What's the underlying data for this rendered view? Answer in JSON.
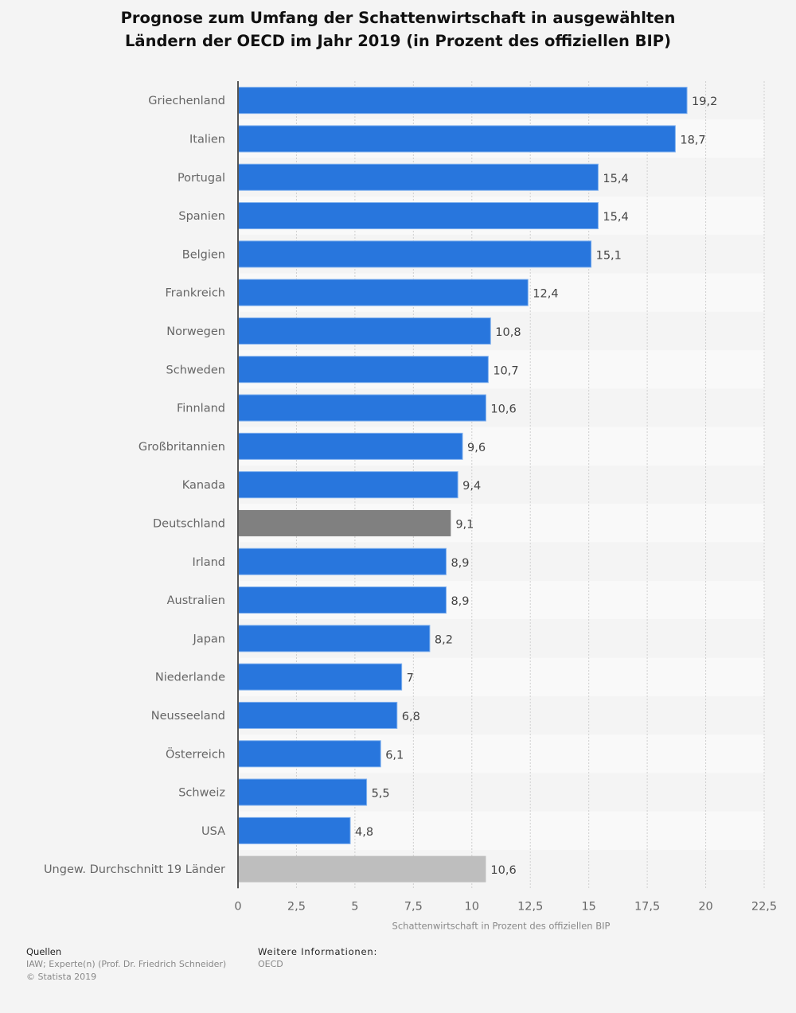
{
  "chart_data": {
    "type": "bar",
    "orientation": "horizontal",
    "title_lines": [
      "Prognose zum Umfang der Schattenwirtschaft in ausgewählten",
      "Ländern der OECD im Jahr 2019 (in Prozent des offiziellen BIP)"
    ],
    "categories": [
      "Griechenland",
      "Italien",
      "Portugal",
      "Spanien",
      "Belgien",
      "Frankreich",
      "Norwegen",
      "Schweden",
      "Finnland",
      "Großbritannien",
      "Kanada",
      "Deutschland",
      "Irland",
      "Australien",
      "Japan",
      "Niederlande",
      "Neusseeland",
      "Österreich",
      "Schweiz",
      "USA",
      "Ungew. Durchschnitt 19 Länder"
    ],
    "values": [
      19.2,
      18.7,
      15.4,
      15.4,
      15.1,
      12.4,
      10.8,
      10.7,
      10.6,
      9.6,
      9.4,
      9.1,
      8.9,
      8.9,
      8.2,
      7,
      6.8,
      6.1,
      5.5,
      4.8,
      10.6
    ],
    "value_labels": [
      "19,2",
      "18,7",
      "15,4",
      "15,4",
      "15,1",
      "12,4",
      "10,8",
      "10,7",
      "10,6",
      "9,6",
      "9,4",
      "9,1",
      "8,9",
      "8,9",
      "8,2",
      "7",
      "6,8",
      "6,1",
      "5,5",
      "4,8",
      "10,6"
    ],
    "bar_colors": [
      "#2876dd",
      "#2876dd",
      "#2876dd",
      "#2876dd",
      "#2876dd",
      "#2876dd",
      "#2876dd",
      "#2876dd",
      "#2876dd",
      "#2876dd",
      "#2876dd",
      "#808080",
      "#2876dd",
      "#2876dd",
      "#2876dd",
      "#2876dd",
      "#2876dd",
      "#2876dd",
      "#2876dd",
      "#2876dd",
      "#bebebe"
    ],
    "xlabel": "Schattenwirtschaft in Prozent des offiziellen BIP",
    "ylabel": "",
    "xlim": [
      0,
      22.5
    ],
    "xticks": [
      0,
      2.5,
      5,
      7.5,
      10,
      12.5,
      15,
      17.5,
      20,
      22.5
    ],
    "xtick_labels": [
      "0",
      "2,5",
      "5",
      "7,5",
      "10",
      "12,5",
      "15",
      "17,5",
      "20",
      "22,5"
    ],
    "grid": true,
    "legend": "none"
  },
  "footer": {
    "sources_heading": "Quellen",
    "sources_text": "IAW; Experte(n) (Prof. Dr. Friedrich Schneider)",
    "copyright": "© Statista 2019",
    "more_info_heading": "Weitere Informationen:",
    "more_info_text": "OECD"
  }
}
